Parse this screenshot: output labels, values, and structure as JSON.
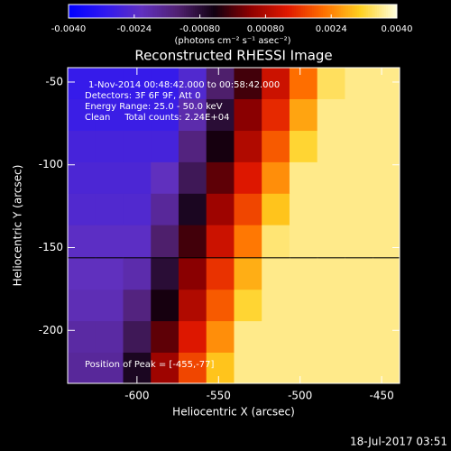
{
  "chart_data": {
    "type": "heatmap",
    "title": "Reconstructed RHESSI Image",
    "colorbar_label": "(photons cm⁻² s⁻¹ asec⁻²)",
    "clim": [
      -0.004,
      0.004
    ],
    "colorbar_ticks": [
      {
        "value": -0.004,
        "label": "-0.0040"
      },
      {
        "value": -0.0024,
        "label": "-0.0024"
      },
      {
        "value": -0.0008,
        "label": "-0.00080"
      },
      {
        "value": 0.0008,
        "label": "0.00080"
      },
      {
        "value": 0.0024,
        "label": "0.0024"
      },
      {
        "value": 0.004,
        "label": "0.0040"
      }
    ],
    "colormap": [
      "#0000ff",
      "#3018f0",
      "#6030c0",
      "#502070",
      "#100010",
      "#900000",
      "#e01800",
      "#ff7000",
      "#ffd020",
      "#ffffe0"
    ],
    "annotations": [
      "1-Nov-2014 00:48:42.000 to 00:58:42.000",
      "Detectors: 3F 6F 9F, Att 0",
      "Energy Range: 25.0 - 50.0 keV",
      "Clean     Total counts: 2.24E+04"
    ],
    "peak_label": "Position of Peak = [-455,-77]",
    "xlabel": "Heliocentric X (arcsec)",
    "ylabel": "Heliocentric Y (arcsec)",
    "footer": "18-Jul-2017 03:51",
    "xlim": [
      -642.5,
      -439
    ],
    "ylim": [
      -232,
      -41.3
    ],
    "xticks": [
      -600,
      -550,
      -500,
      -450
    ],
    "yticks": [
      -200,
      -150,
      -100,
      -50
    ],
    "x": [
      -634,
      -617,
      -600,
      -583,
      -566,
      -549,
      -532,
      -515,
      -498,
      -481,
      -464,
      -447
    ],
    "y": [
      -50.8,
      -69.9,
      -89,
      -108,
      -127,
      -146,
      -166,
      -185,
      -204,
      -223
    ],
    "z": [
      [
        -0.003,
        -0.003,
        -0.003,
        -0.003,
        -0.0025,
        -0.0013,
        -0.0001,
        0.0011,
        0.0022,
        0.0034,
        0.0036,
        0.0036
      ],
      [
        -0.0029,
        -0.0029,
        -0.0029,
        -0.0029,
        -0.002,
        -0.0008,
        0.0004,
        0.0015,
        0.0027,
        0.0036,
        0.0036,
        0.0036
      ],
      [
        -0.0027,
        -0.0027,
        -0.0027,
        -0.0027,
        -0.0015,
        -0.0004,
        0.0008,
        0.002,
        0.0032,
        0.0036,
        0.0036,
        0.0036
      ],
      [
        -0.0026,
        -0.0026,
        -0.0026,
        -0.0022,
        -0.0011,
        0.0001,
        0.0013,
        0.0025,
        0.0036,
        0.0036,
        0.0036,
        0.0036
      ],
      [
        -0.0025,
        -0.0025,
        -0.0025,
        -0.0018,
        -0.0006,
        0.0006,
        0.0018,
        0.003,
        0.0036,
        0.0036,
        0.0036,
        0.0036
      ],
      [
        -0.0023,
        -0.0023,
        -0.0023,
        -0.0013,
        -0.0001,
        0.0011,
        0.0023,
        0.0035,
        0.0036,
        0.0036,
        0.0036,
        0.0036
      ],
      [
        -0.0022,
        -0.0022,
        -0.002,
        -0.0008,
        0.0004,
        0.0016,
        0.0028,
        0.0036,
        0.0036,
        0.0036,
        0.0036,
        0.0036
      ],
      [
        -0.0021,
        -0.0021,
        -0.0015,
        -0.0004,
        0.0008,
        0.002,
        0.0032,
        0.0036,
        0.0036,
        0.0036,
        0.0036,
        0.0036
      ],
      [
        -0.0019,
        -0.0019,
        -0.0011,
        0.0001,
        0.0013,
        0.0025,
        0.0036,
        0.0036,
        0.0036,
        0.0036,
        0.0036,
        0.0036
      ],
      [
        -0.0018,
        -0.0018,
        -0.0006,
        0.0006,
        0.0018,
        0.003,
        0.0036,
        0.0036,
        0.0036,
        0.0036,
        0.0036,
        0.0036
      ]
    ]
  }
}
